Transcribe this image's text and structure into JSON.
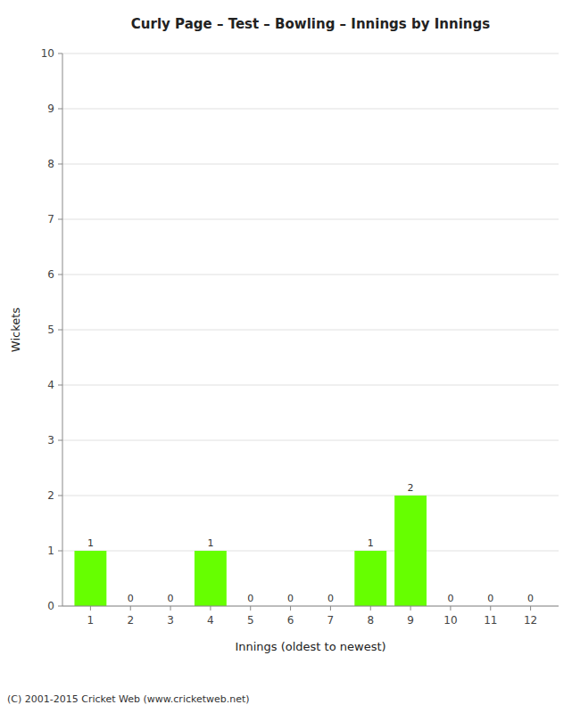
{
  "chart_data": {
    "type": "bar",
    "title": "Curly Page – Test – Bowling – Innings by Innings",
    "x_label": "Innings (oldest to newest)",
    "y_label": "Wickets",
    "x": [
      1,
      2,
      3,
      4,
      5,
      6,
      7,
      8,
      9,
      10,
      11,
      12
    ],
    "values": [
      1,
      0,
      0,
      1,
      0,
      0,
      0,
      1,
      2,
      0,
      0,
      0
    ],
    "color": "#66ff00",
    "xlim": [
      0.3,
      12.7
    ],
    "xticks": [
      1,
      2,
      3,
      4,
      5,
      6,
      7,
      8,
      9,
      10,
      11,
      12
    ],
    "ylim": [
      0,
      10
    ],
    "yticks": [
      0,
      1,
      2,
      3,
      4,
      5,
      6,
      7,
      8,
      9,
      10
    ],
    "grid": true,
    "data_labels": true,
    "annotations": [
      "(C) 2001-2015 Cricket Web (www.cricketweb.net)"
    ]
  }
}
